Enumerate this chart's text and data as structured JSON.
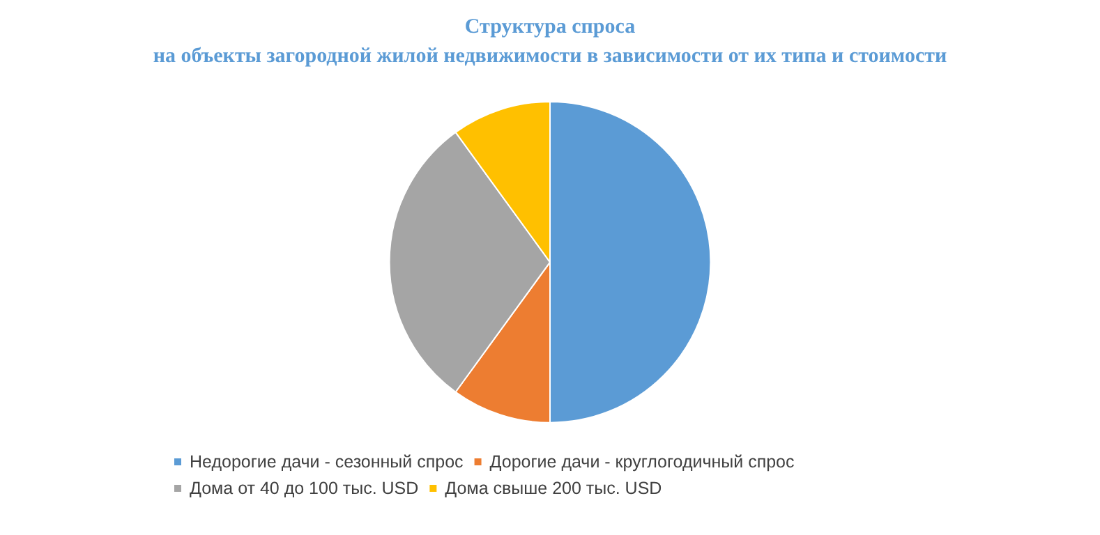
{
  "chart_data": {
    "type": "pie",
    "title": "Структура спроса\nна объекты загородной жилой недвижимости в зависимости от их типа и стоимости",
    "categories": [
      "Недорогие дачи - сезонный спрос",
      "Дорогие дачи - круглогодичный спрос",
      "Дома от 40 до 100 тыс. USD",
      "Дома свыше 200 тыс. USD"
    ],
    "values": [
      50,
      10,
      30,
      10
    ],
    "colors": [
      "#5b9bd5",
      "#ed7d31",
      "#a5a5a5",
      "#ffc000"
    ],
    "legend": "bottom"
  }
}
